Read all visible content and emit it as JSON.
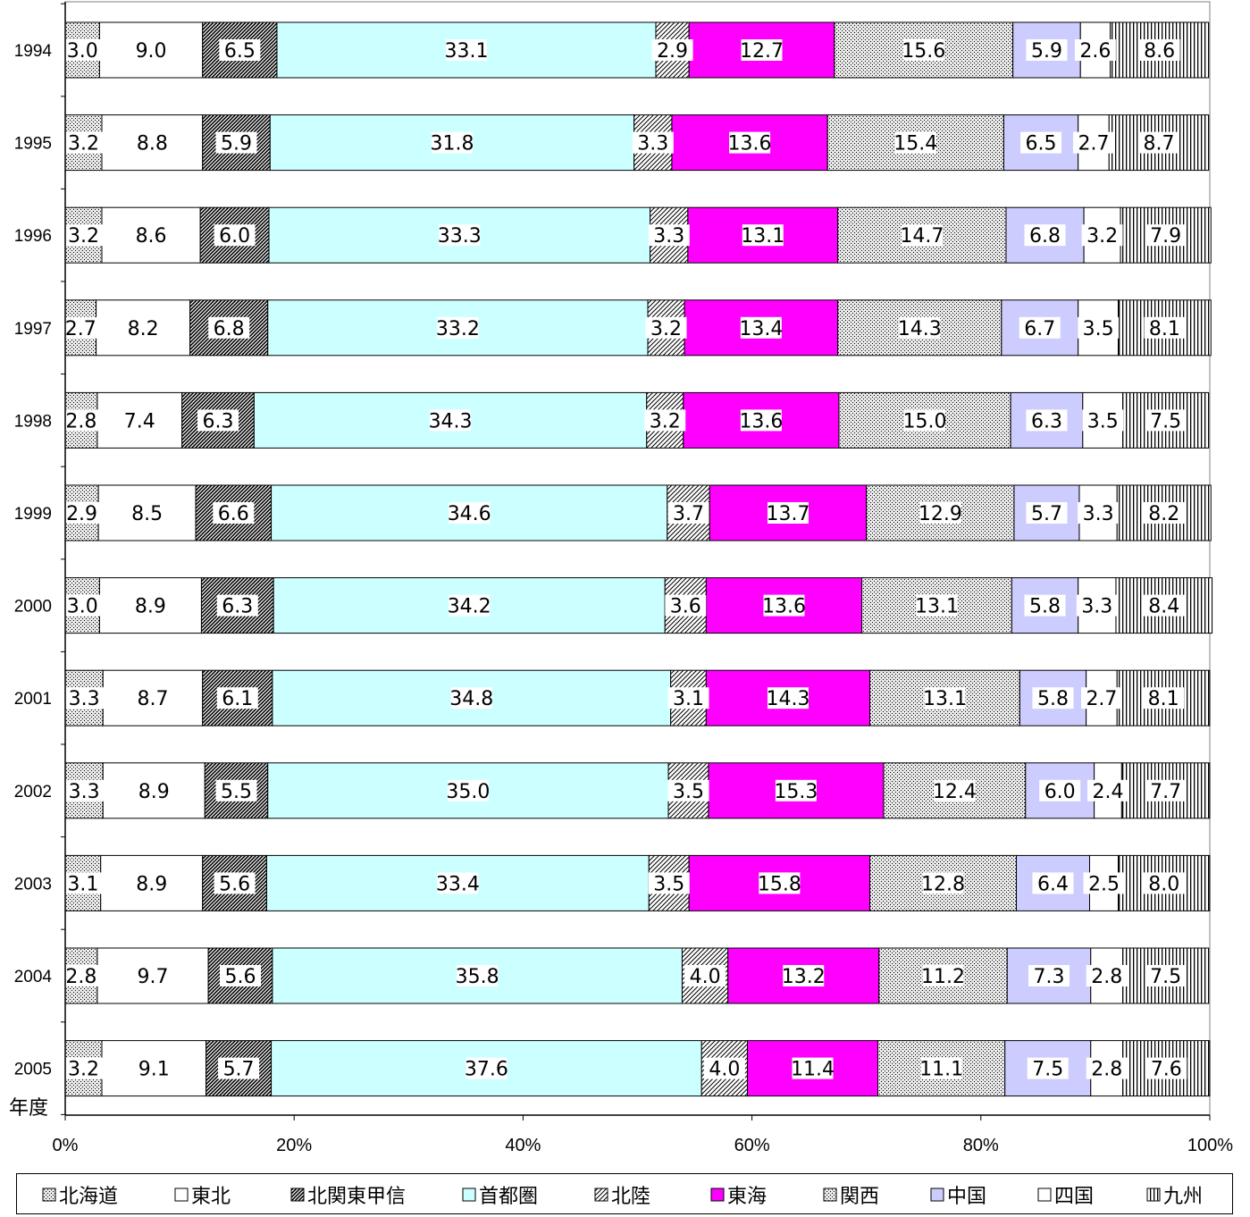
{
  "chart_data": {
    "type": "bar",
    "orientation": "horizontal",
    "stacked": "percent",
    "categories": [
      "1994",
      "1995",
      "1996",
      "1997",
      "1998",
      "1999",
      "2000",
      "2001",
      "2002",
      "2003",
      "2004",
      "2005"
    ],
    "ylabel": "年度",
    "xlabel": "",
    "xlim": [
      0,
      100
    ],
    "x_ticks": [
      "0%",
      "20%",
      "40%",
      "60%",
      "80%",
      "100%"
    ],
    "legend_position": "bottom",
    "series": [
      {
        "name": "北海道",
        "pattern": "dots",
        "fill": "#d8d8d8",
        "values": [
          3.0,
          3.2,
          3.2,
          2.7,
          2.8,
          2.9,
          3.0,
          3.3,
          3.3,
          3.1,
          2.8,
          3.2
        ]
      },
      {
        "name": "東北",
        "pattern": "none",
        "fill": "#ffffff",
        "values": [
          9.0,
          8.8,
          8.6,
          8.2,
          7.4,
          8.5,
          8.9,
          8.7,
          8.9,
          8.9,
          9.7,
          9.1
        ]
      },
      {
        "name": "北関東甲信",
        "pattern": "diag-dense",
        "fill": "#505050",
        "values": [
          6.5,
          5.9,
          6.0,
          6.8,
          6.3,
          6.6,
          6.3,
          6.1,
          5.5,
          5.6,
          5.6,
          5.7
        ]
      },
      {
        "name": "首都圏",
        "pattern": "none",
        "fill": "#ccffff",
        "values": [
          33.1,
          31.8,
          33.3,
          33.2,
          34.3,
          34.6,
          34.2,
          34.8,
          35.0,
          33.4,
          35.8,
          37.6
        ]
      },
      {
        "name": "北陸",
        "pattern": "diag",
        "fill": "#c0c0c0",
        "values": [
          2.9,
          3.3,
          3.3,
          3.2,
          3.2,
          3.7,
          3.6,
          3.1,
          3.5,
          3.5,
          4.0,
          4.0
        ]
      },
      {
        "name": "東海",
        "pattern": "none",
        "fill": "#ff00ff",
        "values": [
          12.7,
          13.6,
          13.1,
          13.4,
          13.6,
          13.7,
          13.6,
          14.3,
          15.3,
          15.8,
          13.2,
          11.4
        ]
      },
      {
        "name": "関西",
        "pattern": "dots",
        "fill": "#d0d0d0",
        "values": [
          15.6,
          15.4,
          14.7,
          14.3,
          15.0,
          12.9,
          13.1,
          13.1,
          12.4,
          12.8,
          11.2,
          11.1
        ]
      },
      {
        "name": "中国",
        "pattern": "none",
        "fill": "#ccccff",
        "values": [
          5.9,
          6.5,
          6.8,
          6.7,
          6.3,
          5.7,
          5.8,
          5.8,
          6.0,
          6.4,
          7.3,
          7.5
        ]
      },
      {
        "name": "四国",
        "pattern": "none",
        "fill": "#ffffff",
        "values": [
          2.6,
          2.7,
          3.2,
          3.5,
          3.5,
          3.3,
          3.3,
          2.7,
          2.4,
          2.5,
          2.8,
          2.8
        ]
      },
      {
        "name": "九州",
        "pattern": "vlines",
        "fill": "#ffffff",
        "values": [
          8.6,
          8.7,
          7.9,
          8.1,
          7.5,
          8.2,
          8.4,
          8.1,
          7.7,
          8.0,
          7.5,
          7.6
        ]
      }
    ]
  }
}
